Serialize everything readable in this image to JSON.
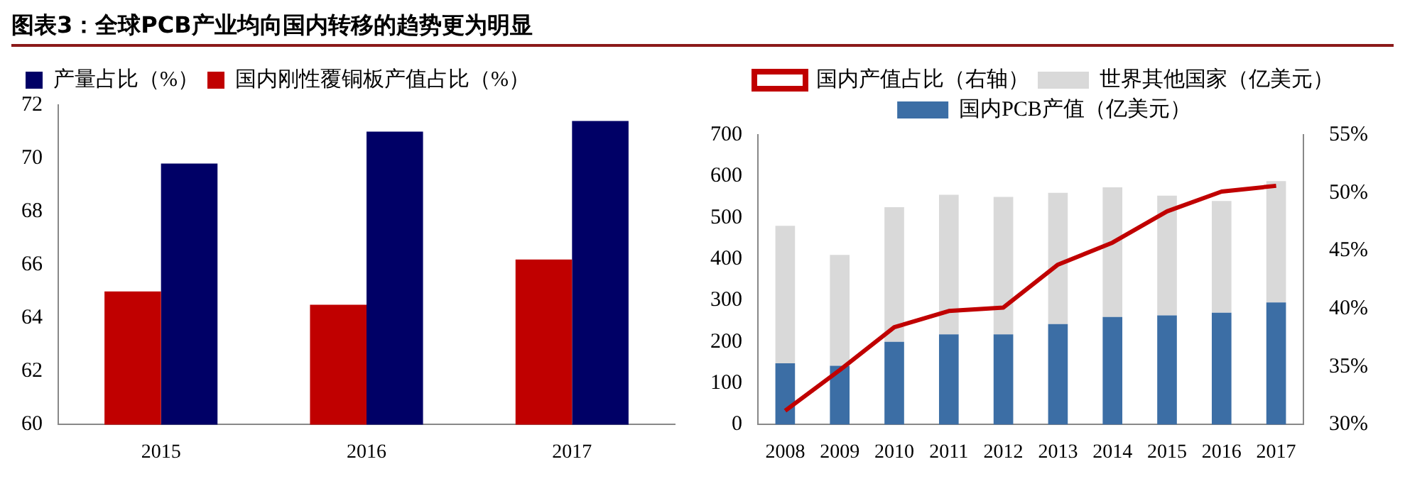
{
  "chart_data": [
    {
      "type": "bar",
      "title": "图表3：全球PCB产业均向国内转移的趋势更为明显",
      "categories": [
        "2015",
        "2016",
        "2017"
      ],
      "series": [
        {
          "name": "国内刚性覆铜板产值占比（%）",
          "color": "#c00000",
          "values": [
            65.0,
            64.5,
            66.2
          ]
        },
        {
          "name": "产量占比（%）",
          "color": "#000066",
          "values": [
            69.8,
            71.0,
            71.4
          ]
        }
      ],
      "ylim": [
        60,
        72
      ],
      "yticks": [
        60,
        62,
        64,
        66,
        68,
        70,
        72
      ],
      "legend": "top"
    },
    {
      "type": "bar",
      "stacked": true,
      "categories": [
        "2008",
        "2009",
        "2010",
        "2011",
        "2012",
        "2013",
        "2014",
        "2015",
        "2016",
        "2017"
      ],
      "series": [
        {
          "name": "国内PCB产值（亿美元）",
          "color": "#3c6ea5",
          "values": [
            148,
            142,
            200,
            218,
            218,
            243,
            260,
            264,
            270,
            295
          ]
        },
        {
          "name": "世界其他国家（亿美元）",
          "color": "#d9d9d9",
          "values": [
            332,
            268,
            325,
            337,
            332,
            317,
            313,
            289,
            270,
            293
          ]
        },
        {
          "name": "国内产值占比（右轴）",
          "type": "line",
          "axis": "y2",
          "color": "#c00000",
          "marker": "none",
          "values": [
            31.2,
            34.7,
            38.4,
            39.8,
            40.1,
            43.8,
            45.7,
            48.4,
            50.1,
            50.6
          ]
        }
      ],
      "ylim": [
        0,
        700
      ],
      "yticks": [
        0,
        100,
        200,
        300,
        400,
        500,
        600,
        700
      ],
      "y2lim": [
        30,
        55
      ],
      "y2ticks": [
        {
          "value": 30,
          "label": "30%"
        },
        {
          "value": 35,
          "label": "35%"
        },
        {
          "value": 40,
          "label": "40%"
        },
        {
          "value": 45,
          "label": "45%"
        },
        {
          "value": 50,
          "label": "50%"
        },
        {
          "value": 55,
          "label": "55%"
        }
      ],
      "legend": "top"
    }
  ]
}
